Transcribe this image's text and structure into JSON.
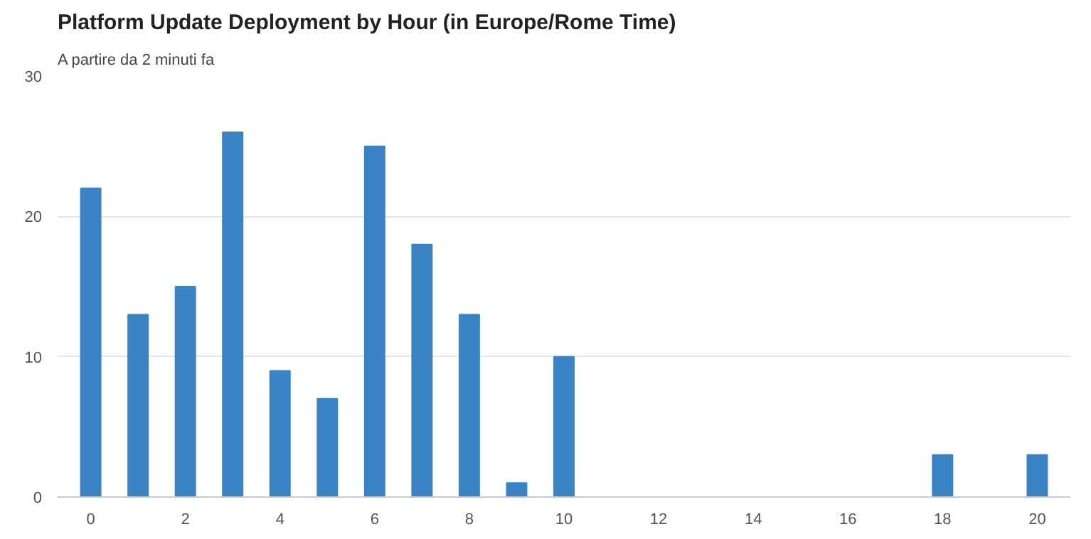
{
  "chart_data": {
    "type": "bar",
    "title": "Platform Update Deployment by Hour (in Europe/Rome Time)",
    "subtitle": "A partire da 2 minuti fa",
    "x": [
      0,
      1,
      2,
      3,
      4,
      5,
      6,
      7,
      8,
      9,
      10,
      18,
      20
    ],
    "values": [
      22,
      13,
      15,
      26,
      9,
      7,
      25,
      18,
      13,
      1,
      10,
      3,
      3
    ],
    "color": "#3a84c5",
    "xlim": [
      -0.7,
      20.7
    ],
    "xticks": [
      0,
      2,
      4,
      6,
      8,
      10,
      12,
      14,
      16,
      18,
      20
    ],
    "ylim": [
      0,
      30
    ],
    "yticks": [
      0,
      10,
      20,
      30
    ],
    "grid": "y"
  }
}
